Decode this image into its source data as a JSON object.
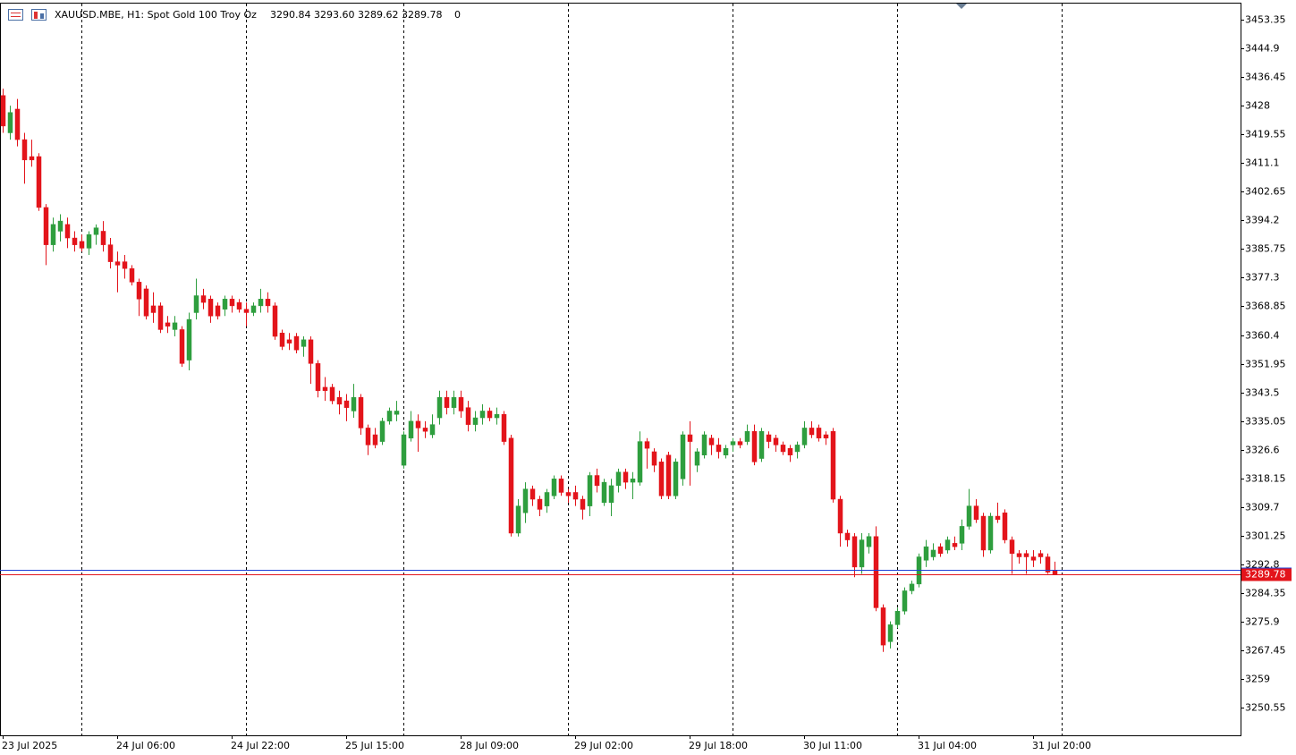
{
  "chart_data": {
    "type": "candlestick",
    "title": "XAUUSD.MBE, H1:  Spot Gold 100 Troy Oz",
    "ohlc_text": "3290.84 3293.60 3289.62 3289.78",
    "extra_text": "0",
    "categories": [
      "23 Jul 2025",
      null,
      null,
      null,
      null,
      null,
      null,
      null,
      null,
      null,
      null,
      null,
      null,
      null,
      null,
      null,
      "24 Jul 06:00",
      null,
      null,
      null,
      null,
      null,
      null,
      null,
      null,
      null,
      null,
      null,
      null,
      null,
      null,
      null,
      "24 Jul 22:00",
      null,
      null,
      null,
      null,
      null,
      null,
      null,
      null,
      null,
      null,
      null,
      null,
      null,
      null,
      null,
      "25 Jul 15:00",
      null,
      null,
      null,
      null,
      null,
      null,
      null,
      null,
      null,
      null,
      null,
      null,
      null,
      null,
      null,
      "28 Jul 09:00",
      null,
      null,
      null,
      null,
      null,
      null,
      null,
      null,
      null,
      null,
      null,
      null,
      null,
      null,
      null,
      "29 Jul 02:00",
      null,
      null,
      null,
      null,
      null,
      null,
      null,
      null,
      null,
      null,
      null,
      null,
      null,
      null,
      null,
      "29 Jul 18:00",
      null,
      null,
      null,
      null,
      null,
      null,
      null,
      null,
      null,
      null,
      null,
      null,
      null,
      null,
      null,
      "30 Jul 11:00",
      null,
      null,
      null,
      null,
      null,
      null,
      null,
      null,
      null,
      null,
      null,
      null,
      null,
      null,
      null,
      "31 Jul 04:00",
      null,
      null,
      null,
      null,
      null,
      null,
      null,
      null,
      null,
      null,
      null,
      null,
      null,
      null,
      null,
      "31 Jul 20:00",
      null,
      null,
      null
    ],
    "open": [
      3431,
      3420,
      3427,
      3418,
      3413,
      3413,
      3398,
      3387,
      3391,
      3393,
      3389,
      3388,
      3386,
      3390,
      3391,
      3387,
      3382,
      3382,
      3380,
      3376,
      3374,
      3369,
      3369,
      3364,
      3362,
      3362,
      3353,
      3367,
      3372,
      3371,
      3369,
      3368,
      3371,
      3370,
      3368,
      3367,
      3369,
      3371,
      3369,
      3361,
      3359,
      3360,
      3357,
      3359,
      3352,
      3345,
      3345,
      3342,
      3341,
      3338,
      3342,
      3333,
      3331,
      3329,
      3335,
      3337,
      3322,
      3330,
      3335,
      3333,
      3331,
      3336,
      3342,
      3339,
      3342,
      3339,
      3334,
      3336,
      3338,
      3336,
      3337,
      3330,
      3302,
      3308,
      3315,
      3312,
      3310,
      3313,
      3318,
      3314,
      3314,
      3312,
      3310,
      3319,
      3311,
      3311,
      3316,
      3320,
      3317,
      3317,
      3329,
      3326,
      3323,
      3325,
      3313,
      3318,
      3331,
      3322,
      3325,
      3330,
      3328,
      3325,
      3328,
      3329,
      3329,
      3332,
      3324,
      3331,
      3330,
      3328,
      3327,
      3326,
      3328,
      3333,
      3333,
      3331,
      3332,
      3312,
      3302,
      3301,
      3292,
      3298,
      3301,
      3280,
      3270,
      3275,
      3279,
      3285,
      3287,
      3294,
      3295,
      3298,
      3297,
      3299,
      3299,
      3304,
      3310,
      3307,
      3297,
      3307,
      3308,
      3300,
      3296,
      3296,
      3295,
      3296,
      3295,
      3290.84
    ],
    "high": [
      3433,
      3428,
      3430,
      3420,
      3418,
      3414,
      3399,
      3395,
      3396,
      3395,
      3391,
      3390,
      3391,
      3393,
      3394,
      3389,
      3385,
      3384,
      3381,
      3377,
      3375,
      3373,
      3370,
      3366,
      3366,
      3363,
      3367,
      3377,
      3374,
      3372,
      3370,
      3372,
      3372,
      3371,
      3370,
      3370,
      3374,
      3373,
      3370,
      3362,
      3361,
      3361,
      3360,
      3360,
      3353,
      3348,
      3346,
      3344,
      3343,
      3346,
      3343,
      3334,
      3333,
      3336,
      3339,
      3341,
      3332,
      3338,
      3337,
      3335,
      3337,
      3344,
      3344,
      3344,
      3344,
      3341,
      3338,
      3340,
      3339,
      3339,
      3338,
      3331,
      3312,
      3317,
      3316,
      3313,
      3315,
      3319,
      3319,
      3315,
      3316,
      3313,
      3320,
      3321,
      3318,
      3318,
      3321,
      3321,
      3320,
      3332,
      3330,
      3327,
      3324,
      3326,
      3324,
      3332,
      3335,
      3327,
      3332,
      3331,
      3330,
      3328,
      3330,
      3330,
      3334,
      3334,
      3333,
      3332,
      3331,
      3329,
      3328,
      3329,
      3335,
      3335,
      3334,
      3332,
      3333,
      3313,
      3303,
      3302,
      3302,
      3302,
      3304,
      3281,
      3276,
      3280,
      3286,
      3288,
      3296,
      3300,
      3299,
      3299,
      3301,
      3301,
      3306,
      3315,
      3312,
      3308,
      3308,
      3311,
      3309,
      3301,
      3297,
      3297,
      3297,
      3297,
      3296,
      3293.6
    ],
    "low": [
      3420,
      3418,
      3416,
      3405,
      3410,
      3397,
      3381,
      3385,
      3388,
      3386,
      3385,
      3385,
      3384,
      3387,
      3385,
      3380,
      3373,
      3377,
      3375,
      3366,
      3365,
      3364,
      3361,
      3361,
      3360,
      3351,
      3350,
      3365,
      3368,
      3364,
      3365,
      3366,
      3367,
      3367,
      3363,
      3366,
      3367,
      3367,
      3359,
      3356,
      3356,
      3355,
      3354,
      3346,
      3342,
      3341,
      3340,
      3337,
      3335,
      3336,
      3331,
      3325,
      3327,
      3328,
      3334,
      3335,
      3321,
      3329,
      3326,
      3330,
      3330,
      3334,
      3337,
      3337,
      3336,
      3332,
      3332,
      3334,
      3335,
      3334,
      3328,
      3301,
      3301,
      3305,
      3310,
      3307,
      3308,
      3312,
      3313,
      3311,
      3310,
      3306,
      3307,
      3314,
      3310,
      3307,
      3314,
      3315,
      3312,
      3316,
      3321,
      3320,
      3312,
      3312,
      3312,
      3316,
      3316,
      3320,
      3324,
      3325,
      3324,
      3324,
      3326,
      3327,
      3328,
      3322,
      3323,
      3327,
      3326,
      3325,
      3323,
      3324,
      3327,
      3330,
      3329,
      3328,
      3311,
      3298,
      3298,
      3289,
      3290,
      3296,
      3279,
      3267,
      3268,
      3274,
      3278,
      3284,
      3286,
      3292,
      3294,
      3295,
      3296,
      3297,
      3297,
      3303,
      3305,
      3295,
      3296,
      3305,
      3299,
      3290,
      3293,
      3290,
      3292,
      3293,
      3290,
      3289.62
    ],
    "close": [
      3422,
      3426,
      3418,
      3412,
      3412,
      3398,
      3387,
      3393,
      3394,
      3389,
      3387,
      3386,
      3390,
      3392,
      3387,
      3382,
      3381,
      3380,
      3376,
      3371,
      3366,
      3367,
      3362,
      3363,
      3364,
      3352,
      3365,
      3372,
      3370,
      3366,
      3366,
      3371,
      3369,
      3368,
      3367,
      3369,
      3371,
      3369,
      3360,
      3357,
      3358,
      3356,
      3359,
      3352,
      3344,
      3344,
      3341,
      3340,
      3339,
      3342,
      3333,
      3328,
      3328,
      3335,
      3338,
      3338,
      3331,
      3335,
      3333,
      3332,
      3334,
      3342,
      3339,
      3342,
      3338,
      3334,
      3336,
      3338,
      3336,
      3337,
      3329,
      3302,
      3310,
      3315,
      3312,
      3309,
      3314,
      3318,
      3314,
      3313,
      3312,
      3309,
      3319,
      3316,
      3317,
      3316,
      3320,
      3317,
      3318,
      3329,
      3327,
      3322,
      3313,
      3313,
      3323,
      3331,
      3329,
      3326,
      3331,
      3328,
      3326,
      3327,
      3329,
      3328,
      3332,
      3323,
      3332,
      3329,
      3328,
      3326,
      3325,
      3328,
      3333,
      3331,
      3330,
      3330,
      3312,
      3302,
      3300,
      3292,
      3300,
      3301,
      3280,
      3269,
      3275,
      3279,
      3285,
      3287,
      3295,
      3298,
      3297,
      3296,
      3300,
      3298,
      3304,
      3310,
      3306,
      3297,
      3307,
      3306,
      3300,
      3296,
      3295,
      3295,
      3294,
      3295,
      3290.5,
      3289.78
    ],
    "up_color": "#2e9e3e",
    "down_color": "#e3141b",
    "last_price": 3289.78,
    "ask_price": 3291.1,
    "ylim": [
      3242.4,
      3458.1
    ],
    "yticks": [
      3453.35,
      3444.9,
      3436.45,
      3428,
      3419.55,
      3411.1,
      3402.65,
      3394.2,
      3385.75,
      3377.3,
      3368.85,
      3360.4,
      3351.95,
      3343.5,
      3335.05,
      3326.6,
      3318.15,
      3309.7,
      3301.25,
      3292.8,
      3284.35,
      3275.9,
      3267.45,
      3259,
      3250.55
    ]
  }
}
